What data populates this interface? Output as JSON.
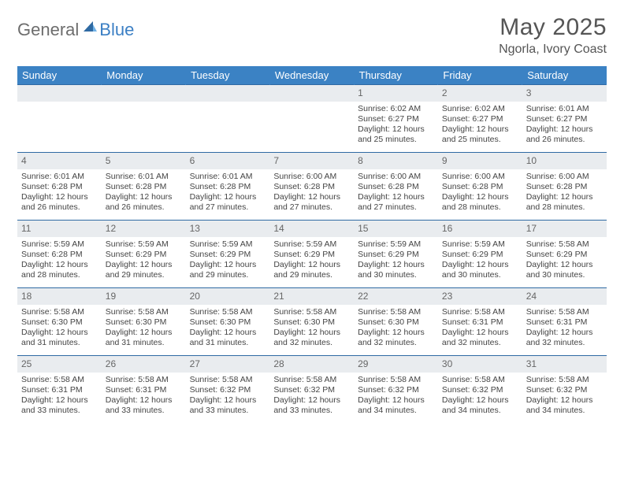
{
  "brand": {
    "part1": "General",
    "part2": "Blue"
  },
  "title": "May 2025",
  "location": "Ngorla, Ivory Coast",
  "colors": {
    "header_bg": "#3b82c4",
    "header_text": "#ffffff",
    "daynum_bg": "#e9ecef",
    "week_border": "#2f6aa3",
    "logo_gray": "#6d6d6d",
    "logo_blue": "#3b7fc4"
  },
  "dow": [
    "Sunday",
    "Monday",
    "Tuesday",
    "Wednesday",
    "Thursday",
    "Friday",
    "Saturday"
  ],
  "weeks": [
    [
      {
        "n": "",
        "sr": "",
        "ss": "",
        "dl": ""
      },
      {
        "n": "",
        "sr": "",
        "ss": "",
        "dl": ""
      },
      {
        "n": "",
        "sr": "",
        "ss": "",
        "dl": ""
      },
      {
        "n": "",
        "sr": "",
        "ss": "",
        "dl": ""
      },
      {
        "n": "1",
        "sr": "Sunrise: 6:02 AM",
        "ss": "Sunset: 6:27 PM",
        "dl": "Daylight: 12 hours and 25 minutes."
      },
      {
        "n": "2",
        "sr": "Sunrise: 6:02 AM",
        "ss": "Sunset: 6:27 PM",
        "dl": "Daylight: 12 hours and 25 minutes."
      },
      {
        "n": "3",
        "sr": "Sunrise: 6:01 AM",
        "ss": "Sunset: 6:27 PM",
        "dl": "Daylight: 12 hours and 26 minutes."
      }
    ],
    [
      {
        "n": "4",
        "sr": "Sunrise: 6:01 AM",
        "ss": "Sunset: 6:28 PM",
        "dl": "Daylight: 12 hours and 26 minutes."
      },
      {
        "n": "5",
        "sr": "Sunrise: 6:01 AM",
        "ss": "Sunset: 6:28 PM",
        "dl": "Daylight: 12 hours and 26 minutes."
      },
      {
        "n": "6",
        "sr": "Sunrise: 6:01 AM",
        "ss": "Sunset: 6:28 PM",
        "dl": "Daylight: 12 hours and 27 minutes."
      },
      {
        "n": "7",
        "sr": "Sunrise: 6:00 AM",
        "ss": "Sunset: 6:28 PM",
        "dl": "Daylight: 12 hours and 27 minutes."
      },
      {
        "n": "8",
        "sr": "Sunrise: 6:00 AM",
        "ss": "Sunset: 6:28 PM",
        "dl": "Daylight: 12 hours and 27 minutes."
      },
      {
        "n": "9",
        "sr": "Sunrise: 6:00 AM",
        "ss": "Sunset: 6:28 PM",
        "dl": "Daylight: 12 hours and 28 minutes."
      },
      {
        "n": "10",
        "sr": "Sunrise: 6:00 AM",
        "ss": "Sunset: 6:28 PM",
        "dl": "Daylight: 12 hours and 28 minutes."
      }
    ],
    [
      {
        "n": "11",
        "sr": "Sunrise: 5:59 AM",
        "ss": "Sunset: 6:28 PM",
        "dl": "Daylight: 12 hours and 28 minutes."
      },
      {
        "n": "12",
        "sr": "Sunrise: 5:59 AM",
        "ss": "Sunset: 6:29 PM",
        "dl": "Daylight: 12 hours and 29 minutes."
      },
      {
        "n": "13",
        "sr": "Sunrise: 5:59 AM",
        "ss": "Sunset: 6:29 PM",
        "dl": "Daylight: 12 hours and 29 minutes."
      },
      {
        "n": "14",
        "sr": "Sunrise: 5:59 AM",
        "ss": "Sunset: 6:29 PM",
        "dl": "Daylight: 12 hours and 29 minutes."
      },
      {
        "n": "15",
        "sr": "Sunrise: 5:59 AM",
        "ss": "Sunset: 6:29 PM",
        "dl": "Daylight: 12 hours and 30 minutes."
      },
      {
        "n": "16",
        "sr": "Sunrise: 5:59 AM",
        "ss": "Sunset: 6:29 PM",
        "dl": "Daylight: 12 hours and 30 minutes."
      },
      {
        "n": "17",
        "sr": "Sunrise: 5:58 AM",
        "ss": "Sunset: 6:29 PM",
        "dl": "Daylight: 12 hours and 30 minutes."
      }
    ],
    [
      {
        "n": "18",
        "sr": "Sunrise: 5:58 AM",
        "ss": "Sunset: 6:30 PM",
        "dl": "Daylight: 12 hours and 31 minutes."
      },
      {
        "n": "19",
        "sr": "Sunrise: 5:58 AM",
        "ss": "Sunset: 6:30 PM",
        "dl": "Daylight: 12 hours and 31 minutes."
      },
      {
        "n": "20",
        "sr": "Sunrise: 5:58 AM",
        "ss": "Sunset: 6:30 PM",
        "dl": "Daylight: 12 hours and 31 minutes."
      },
      {
        "n": "21",
        "sr": "Sunrise: 5:58 AM",
        "ss": "Sunset: 6:30 PM",
        "dl": "Daylight: 12 hours and 32 minutes."
      },
      {
        "n": "22",
        "sr": "Sunrise: 5:58 AM",
        "ss": "Sunset: 6:30 PM",
        "dl": "Daylight: 12 hours and 32 minutes."
      },
      {
        "n": "23",
        "sr": "Sunrise: 5:58 AM",
        "ss": "Sunset: 6:31 PM",
        "dl": "Daylight: 12 hours and 32 minutes."
      },
      {
        "n": "24",
        "sr": "Sunrise: 5:58 AM",
        "ss": "Sunset: 6:31 PM",
        "dl": "Daylight: 12 hours and 32 minutes."
      }
    ],
    [
      {
        "n": "25",
        "sr": "Sunrise: 5:58 AM",
        "ss": "Sunset: 6:31 PM",
        "dl": "Daylight: 12 hours and 33 minutes."
      },
      {
        "n": "26",
        "sr": "Sunrise: 5:58 AM",
        "ss": "Sunset: 6:31 PM",
        "dl": "Daylight: 12 hours and 33 minutes."
      },
      {
        "n": "27",
        "sr": "Sunrise: 5:58 AM",
        "ss": "Sunset: 6:32 PM",
        "dl": "Daylight: 12 hours and 33 minutes."
      },
      {
        "n": "28",
        "sr": "Sunrise: 5:58 AM",
        "ss": "Sunset: 6:32 PM",
        "dl": "Daylight: 12 hours and 33 minutes."
      },
      {
        "n": "29",
        "sr": "Sunrise: 5:58 AM",
        "ss": "Sunset: 6:32 PM",
        "dl": "Daylight: 12 hours and 34 minutes."
      },
      {
        "n": "30",
        "sr": "Sunrise: 5:58 AM",
        "ss": "Sunset: 6:32 PM",
        "dl": "Daylight: 12 hours and 34 minutes."
      },
      {
        "n": "31",
        "sr": "Sunrise: 5:58 AM",
        "ss": "Sunset: 6:32 PM",
        "dl": "Daylight: 12 hours and 34 minutes."
      }
    ]
  ]
}
